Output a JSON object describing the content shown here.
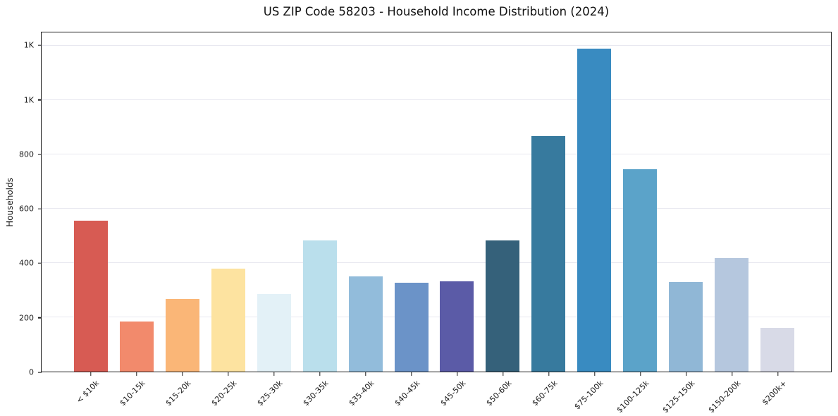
{
  "title": "US ZIP Code 58203 - Household Income Distribution (2024)",
  "chart_data": {
    "type": "bar",
    "title": "US ZIP Code 58203 - Household Income Distribution (2024)",
    "xlabel": "",
    "ylabel": "Households",
    "categories": [
      "< $10k",
      "$10-15k",
      "$15-20k",
      "$20-25k",
      "$25-30k",
      "$30-35k",
      "$35-40k",
      "$40-45k",
      "$45-50k",
      "$50-60k",
      "$60-75k",
      "$75-100k",
      "$100-125k",
      "$125-150k",
      "$150-200k",
      "$200k+"
    ],
    "values": [
      557,
      185,
      267,
      380,
      286,
      483,
      351,
      328,
      333,
      483,
      867,
      1190,
      745,
      330,
      418,
      161
    ],
    "bar_colors": [
      "#d75b53",
      "#f28a6c",
      "#fab677",
      "#fde3a0",
      "#e3f1f7",
      "#badfec",
      "#92bcdb",
      "#6b93c8",
      "#5b5ba7",
      "#35617a",
      "#377a9e",
      "#398bc1",
      "#5ba3c9",
      "#90b7d6",
      "#b5c7de",
      "#d8dae7"
    ],
    "ylim": [
      0,
      1250
    ],
    "yticks": {
      "values": [
        0,
        200,
        400,
        600,
        800,
        1000,
        1200
      ],
      "labels": [
        "0",
        "200",
        "400",
        "600",
        "800",
        "1K",
        "1K"
      ]
    },
    "grid": "horizontal",
    "legend": "none",
    "colors": {
      "spine": "#1a1a1a",
      "gridline": "#e8e8f0",
      "background": "#ffffff",
      "text": "#1a1a1a"
    }
  }
}
